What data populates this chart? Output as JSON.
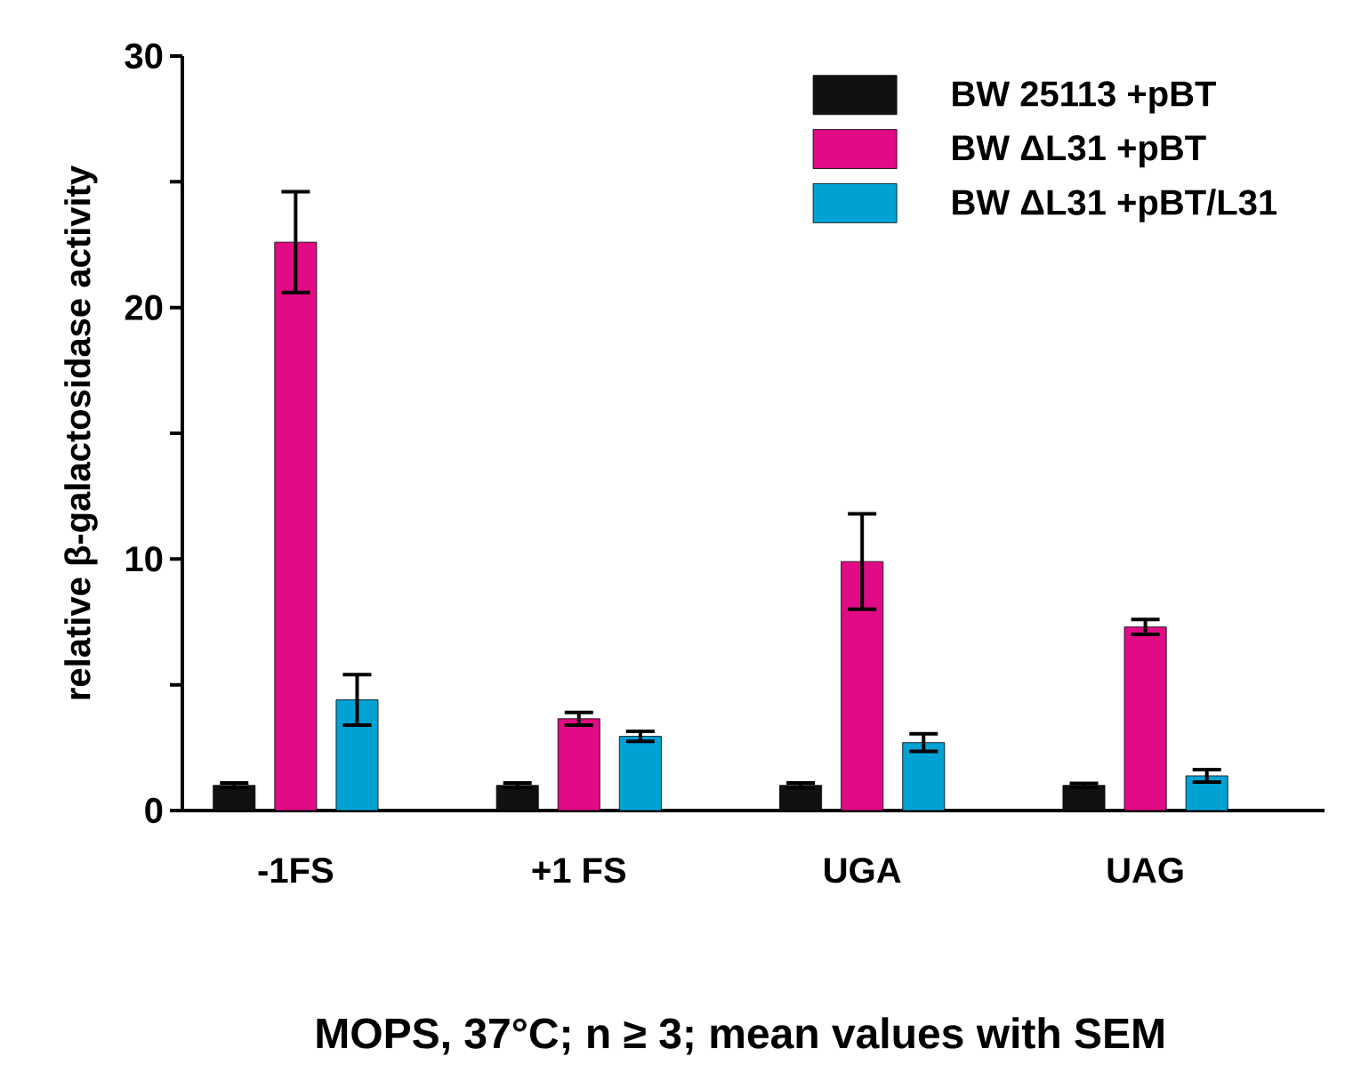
{
  "chart_data": {
    "type": "bar",
    "ylabel": "relative β-galactosidase activity",
    "categories": [
      "-1FS",
      "+1 FS",
      "UGA",
      "UAG"
    ],
    "series": [
      {
        "name": "BW 25113 +pBT",
        "color": "#111111",
        "values": [
          1.0,
          1.0,
          1.0,
          1.0
        ],
        "errors": [
          0.1,
          0.1,
          0.1,
          0.08
        ]
      },
      {
        "name": "BW ΔL31 +pBT",
        "color": "#e00b85",
        "values": [
          22.6,
          3.65,
          9.9,
          7.3
        ],
        "errors": [
          2.0,
          0.25,
          1.9,
          0.3
        ]
      },
      {
        "name": "BW ΔL31 +pBT/L31",
        "color": "#00a2d4",
        "values": [
          4.4,
          2.95,
          2.7,
          1.38
        ],
        "errors": [
          1.0,
          0.2,
          0.35,
          0.25
        ]
      }
    ],
    "ylim": [
      0,
      30
    ],
    "yticks": [
      0,
      {
        "value": 5,
        "label": null
      },
      10,
      {
        "value": 15,
        "label": null
      },
      20,
      {
        "value": 25,
        "label": null
      },
      30
    ],
    "grid": false,
    "legend": "top right",
    "annotations": [
      "MOPS, 37°C; n ≥ 3; mean values with SEM"
    ]
  }
}
